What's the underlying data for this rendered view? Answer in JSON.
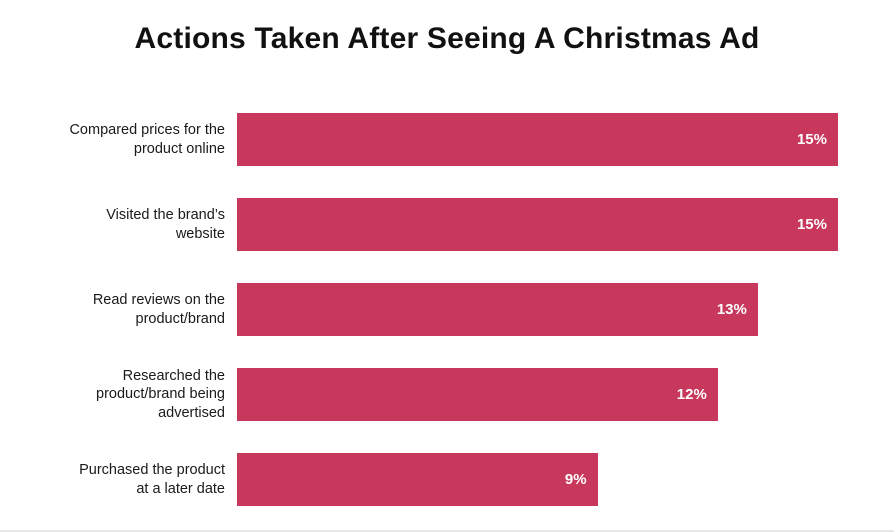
{
  "page": {
    "title": "Actions Taken After Seeing A Christmas Ad"
  },
  "chart_data": {
    "type": "bar",
    "orientation": "horizontal",
    "title": "Actions Taken After Seeing A Christmas Ad",
    "categories": [
      "Compared prices for the product online",
      "Visited the brand’s website",
      "Read reviews on the product/brand",
      "Researched the product/brand being advertised",
      "Purchased the product at a later date"
    ],
    "values": [
      15,
      15,
      13,
      12,
      9
    ],
    "value_labels": [
      "15%",
      "15%",
      "13%",
      "12%",
      "9%"
    ],
    "xlim": [
      0,
      15
    ],
    "bar_color": "#c8385c",
    "value_label_color": "#ffffff",
    "grid": false,
    "legend": false
  }
}
